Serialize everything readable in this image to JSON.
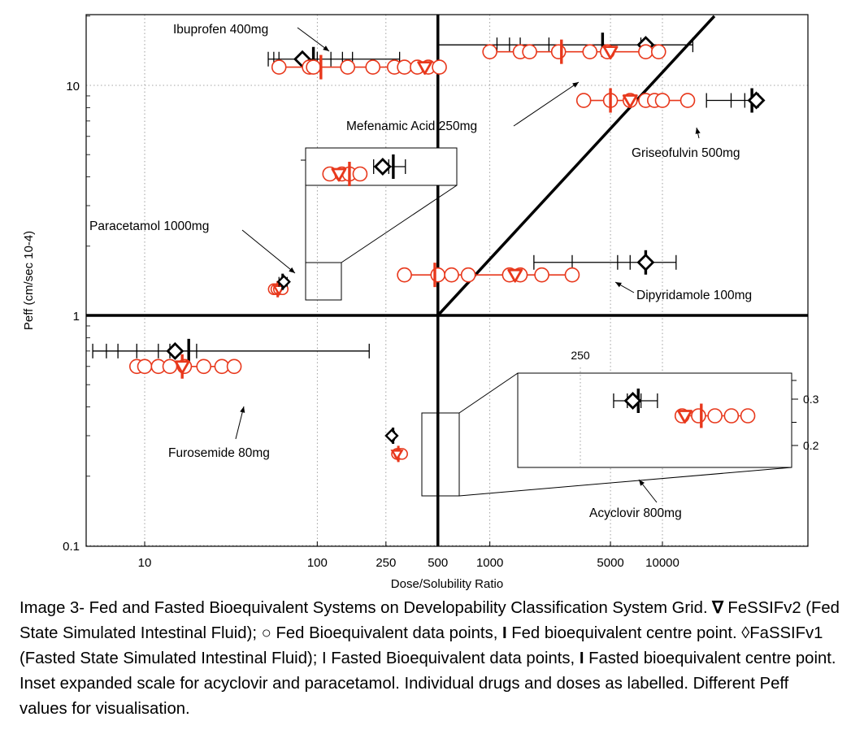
{
  "chart_data": {
    "type": "scatter",
    "xlabel": "Dose/Solubility Ratio",
    "ylabel": "Peff (cm/sec 10-4)",
    "x_scale": "log",
    "y_scale": "log",
    "xlim": [
      2,
      80000
    ],
    "ylim": [
      0.1,
      20
    ],
    "x_ticks": [
      {
        "value": 10,
        "label": "10"
      },
      {
        "value": 100,
        "label": "100"
      },
      {
        "value": 250,
        "label": "250"
      },
      {
        "value": 500,
        "label": "500"
      },
      {
        "value": 1000,
        "label": "1000"
      },
      {
        "value": 5000,
        "label": "5000"
      },
      {
        "value": 10000,
        "label": "10000"
      }
    ],
    "y_ticks": [
      {
        "value": 0.1,
        "label": "0.1"
      },
      {
        "value": 1,
        "label": "1"
      },
      {
        "value": 10,
        "label": "10"
      }
    ],
    "grid": "dotted",
    "class_boundaries": {
      "dose_solubility_ratio": 500,
      "peff": 1,
      "diagonal_from": [
        500,
        1
      ],
      "diagonal_to": [
        20000,
        20
      ]
    },
    "colors": {
      "fed": "#e8381c",
      "fasted": "#000000"
    },
    "drugs": [
      {
        "label": "Ibuprofen 400mg",
        "fed_peff": 12,
        "fed_points": [
          60,
          90,
          95,
          150,
          210,
          280,
          320,
          380,
          440,
          510
        ],
        "fed_centre": 105,
        "fessif": 420,
        "fasted_peff": 13,
        "fasted_points": [
          52,
          56,
          60,
          100,
          120,
          140,
          160,
          300
        ],
        "fasted_centre": 95,
        "fassif": 82
      },
      {
        "label": "Mefenamic Acid 250mg",
        "fed_peff": 14,
        "fed_points": [
          1000,
          1500,
          1700,
          2500,
          3800,
          4800,
          8000,
          9500
        ],
        "fed_centre": 2600,
        "fessif": 5000,
        "fasted_peff": 15,
        "fasted_points": [
          500,
          1100,
          1300,
          1500,
          2200,
          7500,
          15000
        ],
        "fasted_centre": 4500,
        "fassif": 8000
      },
      {
        "label": "Griseofulvin 500mg",
        "fed_peff": 8.6,
        "fed_points": [
          3500,
          5000,
          6500,
          8000,
          9000,
          10000,
          14000
        ],
        "fed_centre": 5000,
        "fessif": 6500,
        "fasted_peff": 8.6,
        "fasted_points": [
          18000,
          25000,
          30000,
          36000
        ],
        "fasted_centre": 33000,
        "fassif": 35000
      },
      {
        "label": "Dipyridamole 100mg",
        "fed_peff": 1.5,
        "fed_points": [
          320,
          500,
          600,
          750,
          1300,
          1500,
          2000,
          3000
        ],
        "fed_centre": 480,
        "fessif": 1400,
        "fasted_peff": 1.7,
        "fasted_points": [
          1800,
          3000,
          5500,
          6500,
          8000,
          12000
        ],
        "fasted_centre": 8000,
        "fassif": 8000
      },
      {
        "label": "Paracetamol 1000mg",
        "fed_peff": 1.3,
        "fed_points": [
          56,
          58,
          60,
          63
        ],
        "fed_centre": 59,
        "fessif": 60,
        "fasted_peff": 1.4,
        "fasted_points": [
          60,
          62,
          65,
          67
        ],
        "fasted_centre": 63,
        "fassif": 64
      },
      {
        "label": "Furosemide 80mg",
        "fed_peff": 0.6,
        "fed_points": [
          9,
          10,
          12,
          14,
          17,
          22,
          28,
          33
        ],
        "fed_centre": 16.5,
        "fessif": 16.5,
        "fasted_peff": 0.7,
        "fasted_points": [
          5,
          6,
          7,
          9,
          12,
          14,
          20,
          200
        ],
        "fasted_centre": 18,
        "fassif": 15
      },
      {
        "label": "Acyclovir 800mg",
        "fed_peff": 0.25,
        "fed_points": [
          290,
          300,
          310
        ],
        "fed_centre": 295,
        "fessif": 290,
        "fasted_peff": 0.3,
        "fasted_points": [
          270,
          275,
          280
        ],
        "fasted_centre": 275,
        "fassif": 270
      }
    ],
    "inset_paracetamol": {
      "fed_points": [
        0.16,
        0.24,
        0.29,
        0.36
      ],
      "fed_centre": 0.29,
      "fessif": 0.22,
      "fasted_points": [
        0.45,
        0.55,
        0.66
      ],
      "fasted_centre": 0.58,
      "fassif": 0.51
    },
    "inset_acyclovir": {
      "tick_x_label": "250",
      "y_ticks": [
        {
          "value": 0.3,
          "label": "0.3"
        },
        {
          "value": 0.2,
          "label": "0.2"
        }
      ],
      "fed_peff": 0.25,
      "fed_points": [
        0.6,
        0.66,
        0.72,
        0.78,
        0.84
      ],
      "fed_centre": 0.67,
      "fessif": 0.61,
      "fasted_peff": 0.3,
      "fasted_points": [
        0.35,
        0.4,
        0.45,
        0.51
      ],
      "fasted_centre": 0.44,
      "fassif": 0.42
    }
  },
  "caption": {
    "part1": "Image 3- Fed and Fasted Bioequivalent Systems on Developability Classification System Grid. ",
    "fessif_symbol": "∇",
    "part2": " FeSSIFv2 (Fed State Simulated Intestinal Fluid); ○ Fed Bioequivalent data points, ",
    "bar_symbol_1": "I",
    "part3": " Fed bioequivalent centre point. ◊FaSSIFv1 (Fasted State Simulated Intestinal Fluid); I Fasted Bioequivalent data points, ",
    "bar_symbol_2": "I",
    "part4": " Fasted bioequivalent centre point. Inset expanded scale for acyclovir and paracetamol. Individual drugs and doses as labelled. Different Peff values for visualisation."
  }
}
